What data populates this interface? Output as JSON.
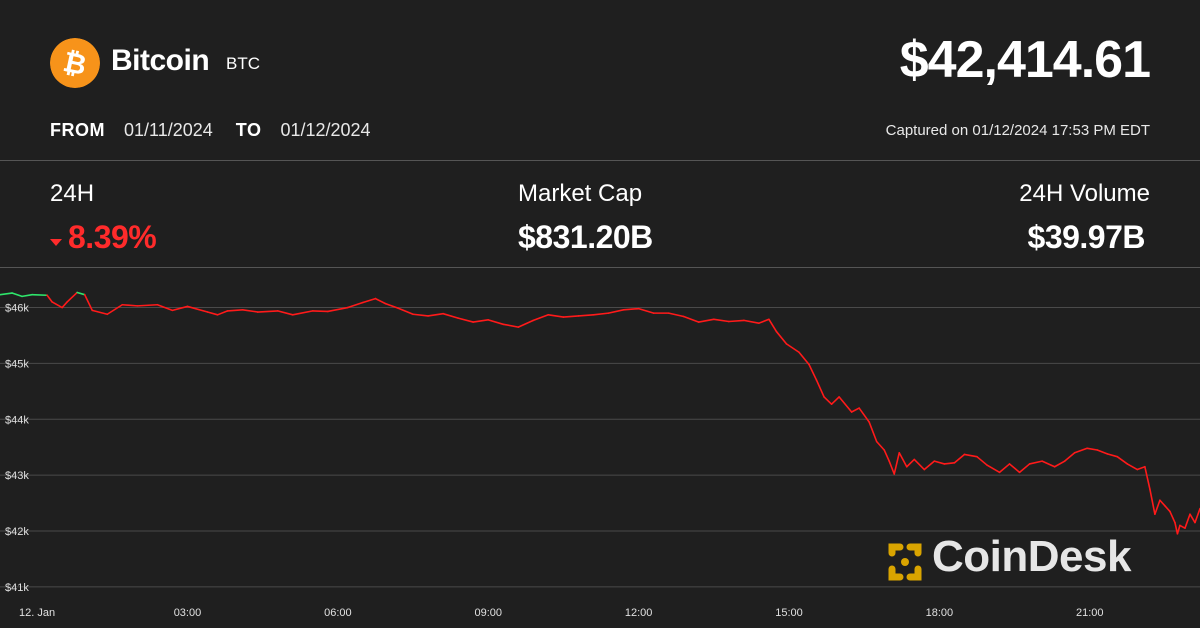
{
  "coin": {
    "name": "Bitcoin",
    "ticker": "BTC",
    "icon": "bitcoin-icon",
    "icon_color": "#f7931a"
  },
  "price": "$42,414.61",
  "range": {
    "from_label": "FROM",
    "from_date": "01/11/2024",
    "to_label": "TO",
    "to_date": "01/12/2024"
  },
  "captured": "Captured on 01/12/2024 17:53 PM EDT",
  "stats": {
    "change": {
      "label": "24H",
      "value": "8.39%",
      "direction": "down",
      "color": "#ff2b2b"
    },
    "market_cap": {
      "label": "Market Cap",
      "value": "$831.20B"
    },
    "volume": {
      "label": "24H Volume",
      "value": "$39.97B"
    }
  },
  "watermark": {
    "text": "CoinDesk",
    "icon": "coindesk-logo-icon",
    "color": "#d9a400"
  },
  "colors": {
    "background": "#1f1f1f",
    "line_down": "#ff1a1a",
    "line_up": "#2ee66b",
    "grid": "#4a4a4a"
  },
  "chart_data": {
    "type": "line",
    "x_unit": "hour",
    "x_ticks": [
      {
        "x": 0,
        "label": "12. Jan"
      },
      {
        "x": 3,
        "label": "03:00"
      },
      {
        "x": 6,
        "label": "06:00"
      },
      {
        "x": 9,
        "label": "09:00"
      },
      {
        "x": 12,
        "label": "12:00"
      },
      {
        "x": 15,
        "label": "15:00"
      },
      {
        "x": 18,
        "label": "18:00"
      },
      {
        "x": 21,
        "label": "21:00"
      }
    ],
    "y_ticks": [
      {
        "y": 46000,
        "label": "$46k"
      },
      {
        "y": 45000,
        "label": "$45k"
      },
      {
        "y": 44000,
        "label": "$44k"
      },
      {
        "y": 43000,
        "label": "$43k"
      },
      {
        "y": 42000,
        "label": "$42k"
      },
      {
        "y": 41000,
        "label": "$41k"
      }
    ],
    "xlim": [
      -0.74,
      23.2
    ],
    "ylim": [
      40800,
      46350
    ],
    "grid": true,
    "series": [
      {
        "color_rule": "green above 46200, red otherwise",
        "points": [
          [
            -0.74,
            46230
          ],
          [
            -0.5,
            46260
          ],
          [
            -0.3,
            46200
          ],
          [
            -0.1,
            46230
          ],
          [
            0.2,
            46220
          ],
          [
            0.3,
            46100
          ],
          [
            0.5,
            46000
          ],
          [
            0.6,
            46100
          ],
          [
            0.8,
            46270
          ],
          [
            0.95,
            46230
          ],
          [
            1.1,
            45950
          ],
          [
            1.4,
            45880
          ],
          [
            1.7,
            46050
          ],
          [
            2.0,
            46030
          ],
          [
            2.4,
            46050
          ],
          [
            2.7,
            45950
          ],
          [
            3.0,
            46020
          ],
          [
            3.4,
            45920
          ],
          [
            3.6,
            45870
          ],
          [
            3.8,
            45940
          ],
          [
            4.1,
            45960
          ],
          [
            4.4,
            45920
          ],
          [
            4.8,
            45940
          ],
          [
            5.1,
            45870
          ],
          [
            5.5,
            45940
          ],
          [
            5.8,
            45930
          ],
          [
            6.2,
            46000
          ],
          [
            6.5,
            46090
          ],
          [
            6.75,
            46160
          ],
          [
            6.95,
            46070
          ],
          [
            7.2,
            45990
          ],
          [
            7.5,
            45880
          ],
          [
            7.8,
            45850
          ],
          [
            8.1,
            45890
          ],
          [
            8.4,
            45810
          ],
          [
            8.7,
            45740
          ],
          [
            9.0,
            45780
          ],
          [
            9.3,
            45700
          ],
          [
            9.6,
            45650
          ],
          [
            9.9,
            45770
          ],
          [
            10.2,
            45870
          ],
          [
            10.5,
            45830
          ],
          [
            10.8,
            45850
          ],
          [
            11.1,
            45870
          ],
          [
            11.4,
            45900
          ],
          [
            11.7,
            45960
          ],
          [
            12.0,
            45980
          ],
          [
            12.3,
            45900
          ],
          [
            12.6,
            45900
          ],
          [
            12.9,
            45840
          ],
          [
            13.2,
            45740
          ],
          [
            13.5,
            45790
          ],
          [
            13.8,
            45750
          ],
          [
            14.1,
            45770
          ],
          [
            14.4,
            45720
          ],
          [
            14.6,
            45790
          ],
          [
            14.75,
            45570
          ],
          [
            14.95,
            45350
          ],
          [
            15.2,
            45200
          ],
          [
            15.4,
            44980
          ],
          [
            15.55,
            44700
          ],
          [
            15.7,
            44400
          ],
          [
            15.85,
            44270
          ],
          [
            16.0,
            44400
          ],
          [
            16.25,
            44130
          ],
          [
            16.4,
            44200
          ],
          [
            16.6,
            43950
          ],
          [
            16.75,
            43600
          ],
          [
            16.9,
            43450
          ],
          [
            17.0,
            43250
          ],
          [
            17.1,
            43020
          ],
          [
            17.2,
            43400
          ],
          [
            17.35,
            43150
          ],
          [
            17.5,
            43280
          ],
          [
            17.7,
            43100
          ],
          [
            17.9,
            43250
          ],
          [
            18.1,
            43200
          ],
          [
            18.3,
            43220
          ],
          [
            18.5,
            43370
          ],
          [
            18.75,
            43330
          ],
          [
            18.95,
            43180
          ],
          [
            19.2,
            43050
          ],
          [
            19.4,
            43200
          ],
          [
            19.6,
            43050
          ],
          [
            19.8,
            43200
          ],
          [
            20.05,
            43250
          ],
          [
            20.3,
            43150
          ],
          [
            20.5,
            43250
          ],
          [
            20.7,
            43400
          ],
          [
            20.95,
            43480
          ],
          [
            21.15,
            43450
          ],
          [
            21.35,
            43380
          ],
          [
            21.55,
            43330
          ],
          [
            21.75,
            43200
          ],
          [
            21.95,
            43100
          ],
          [
            22.1,
            43150
          ],
          [
            22.2,
            42750
          ],
          [
            22.3,
            42300
          ],
          [
            22.4,
            42550
          ],
          [
            22.5,
            42450
          ],
          [
            22.6,
            42350
          ],
          [
            22.7,
            42150
          ],
          [
            22.75,
            41950
          ],
          [
            22.8,
            42100
          ],
          [
            22.9,
            42050
          ],
          [
            23.0,
            42300
          ],
          [
            23.1,
            42150
          ],
          [
            23.2,
            42400
          ]
        ]
      }
    ]
  }
}
